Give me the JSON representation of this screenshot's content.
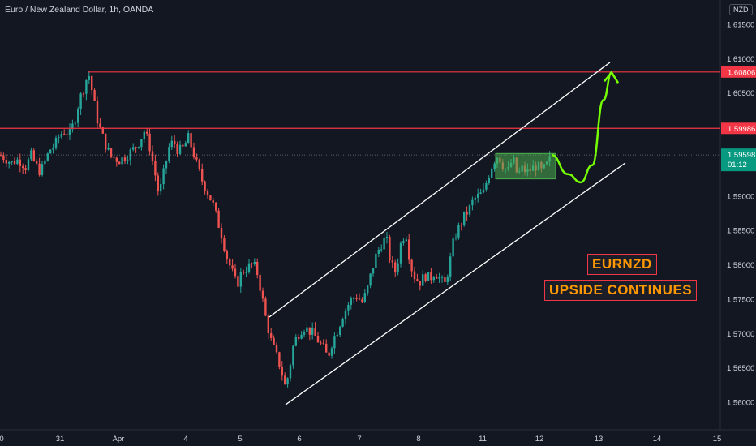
{
  "header": {
    "title": "Euro / New Zealand Dollar, 1h, OANDA",
    "currency": "NZD"
  },
  "chart_data": {
    "type": "candlestick",
    "symbol": "EURNZD",
    "y_ticks": [
      "1.61500",
      "1.61000",
      "1.60500",
      "1.60000",
      "1.59500",
      "1.59000",
      "1.58500",
      "1.58000",
      "1.57500",
      "1.57000",
      "1.56500",
      "1.56000"
    ],
    "x_ticks": [
      "0",
      "31",
      "Apr",
      "4",
      "5",
      "6",
      "7",
      "8",
      "11",
      "12",
      "13",
      "14",
      "15"
    ],
    "ylim": [
      1.5585,
      1.6175
    ],
    "resistance_levels": [
      {
        "label": "1.60806",
        "value": 1.60806
      },
      {
        "label": "1.59986",
        "value": 1.59986
      }
    ],
    "current_price": {
      "label": "1.59598",
      "value": 1.59598,
      "countdown": "01:12"
    },
    "close_path": [
      [
        0,
        1.596
      ],
      [
        7,
        1.5955
      ],
      [
        14,
        1.5948
      ],
      [
        20,
        1.5953
      ],
      [
        26,
        1.595
      ],
      [
        32,
        1.5942
      ],
      [
        38,
        1.596
      ],
      [
        44,
        1.5945
      ],
      [
        50,
        1.5935
      ],
      [
        56,
        1.5952
      ],
      [
        62,
        1.5968
      ],
      [
        68,
        1.5975
      ],
      [
        74,
        1.599
      ],
      [
        80,
        1.5995
      ],
      [
        86,
        1.599
      ],
      [
        92,
        1.601
      ],
      [
        98,
        1.604
      ],
      [
        104,
        1.606
      ],
      [
        109,
        1.608
      ],
      [
        114,
        1.605
      ],
      [
        119,
        1.6015
      ],
      [
        124,
        1.5995
      ],
      [
        130,
        1.5975
      ],
      [
        136,
        1.5958
      ],
      [
        142,
        1.5955
      ],
      [
        148,
        1.5952
      ],
      [
        154,
        1.5957
      ],
      [
        160,
        1.5963
      ],
      [
        166,
        1.597
      ],
      [
        172,
        1.598
      ],
      [
        178,
        1.5995
      ],
      [
        184,
        1.5975
      ],
      [
        190,
        1.594
      ],
      [
        196,
        1.59
      ],
      [
        202,
        1.5935
      ],
      [
        208,
        1.597
      ],
      [
        214,
        1.598
      ],
      [
        220,
        1.5965
      ],
      [
        226,
        1.597
      ],
      [
        232,
        1.5985
      ],
      [
        238,
        1.5965
      ],
      [
        244,
        1.594
      ],
      [
        250,
        1.592
      ],
      [
        256,
        1.5905
      ],
      [
        262,
        1.589
      ],
      [
        268,
        1.5865
      ],
      [
        274,
        1.584
      ],
      [
        280,
        1.581
      ],
      [
        286,
        1.579
      ],
      [
        292,
        1.577
      ],
      [
        298,
        1.579
      ],
      [
        304,
        1.5795
      ],
      [
        310,
        1.58
      ],
      [
        316,
        1.5795
      ],
      [
        322,
        1.576
      ],
      [
        328,
        1.572
      ],
      [
        334,
        1.569
      ],
      [
        340,
        1.567
      ],
      [
        346,
        1.565
      ],
      [
        352,
        1.562
      ],
      [
        357,
        1.565
      ],
      [
        362,
        1.5685
      ],
      [
        368,
        1.57
      ],
      [
        374,
        1.571
      ],
      [
        380,
        1.5705
      ],
      [
        386,
        1.57
      ],
      [
        392,
        1.569
      ],
      [
        398,
        1.568
      ],
      [
        404,
        1.5665
      ],
      [
        410,
        1.569
      ],
      [
        416,
        1.5705
      ],
      [
        422,
        1.5725
      ],
      [
        428,
        1.574
      ],
      [
        434,
        1.575
      ],
      [
        440,
        1.5755
      ],
      [
        446,
        1.5745
      ],
      [
        452,
        1.576
      ],
      [
        458,
        1.579
      ],
      [
        464,
        1.5815
      ],
      [
        470,
        1.583
      ],
      [
        476,
        1.584
      ],
      [
        482,
        1.58
      ],
      [
        488,
        1.579
      ],
      [
        494,
        1.583
      ],
      [
        500,
        1.585
      ],
      [
        506,
        1.58
      ],
      [
        512,
        1.578
      ],
      [
        518,
        1.5775
      ],
      [
        524,
        1.5785
      ],
      [
        530,
        1.578
      ],
      [
        536,
        1.579
      ],
      [
        542,
        1.578
      ],
      [
        548,
        1.577
      ],
      [
        554,
        1.58
      ],
      [
        560,
        1.584
      ],
      [
        566,
        1.5855
      ],
      [
        572,
        1.587
      ],
      [
        578,
        1.588
      ],
      [
        584,
        1.5895
      ],
      [
        590,
        1.59
      ],
      [
        596,
        1.5905
      ],
      [
        602,
        1.593
      ],
      [
        608,
        1.595
      ],
      [
        614,
        1.596
      ],
      [
        620,
        1.5945
      ],
      [
        626,
        1.5935
      ],
      [
        632,
        1.5955
      ],
      [
        638,
        1.593
      ],
      [
        644,
        1.594
      ],
      [
        650,
        1.5935
      ],
      [
        656,
        1.594
      ],
      [
        662,
        1.5945
      ],
      [
        668,
        1.5935
      ],
      [
        674,
        1.5945
      ],
      [
        680,
        1.5958
      ]
    ],
    "consolidation_box": {
      "x_from": 611,
      "x_to": 685,
      "y_high": 1.5962,
      "y_low": 1.5925
    },
    "channel": {
      "upper": [
        [
          332,
          1.5724
        ],
        [
          752,
          1.60946
        ]
      ],
      "lower": [
        [
          352,
          1.55964
        ],
        [
          771,
          1.59483
        ]
      ]
    },
    "projection": [
      [
        680,
        1.596
      ],
      [
        700,
        1.5932
      ],
      [
        716,
        1.592
      ],
      [
        730,
        1.5945
      ],
      [
        744,
        1.604
      ],
      [
        754,
        1.608
      ]
    ],
    "colors": {
      "up": "#26a69a",
      "down": "#ef5350",
      "resistance": "#f23645",
      "channel": "#ffffff",
      "projection": "#76ff03",
      "box": "#4caf50",
      "current_price": "#089981"
    }
  },
  "annotations": {
    "line1": "EURNZD",
    "line2": "UPSIDE CONTINUES"
  }
}
